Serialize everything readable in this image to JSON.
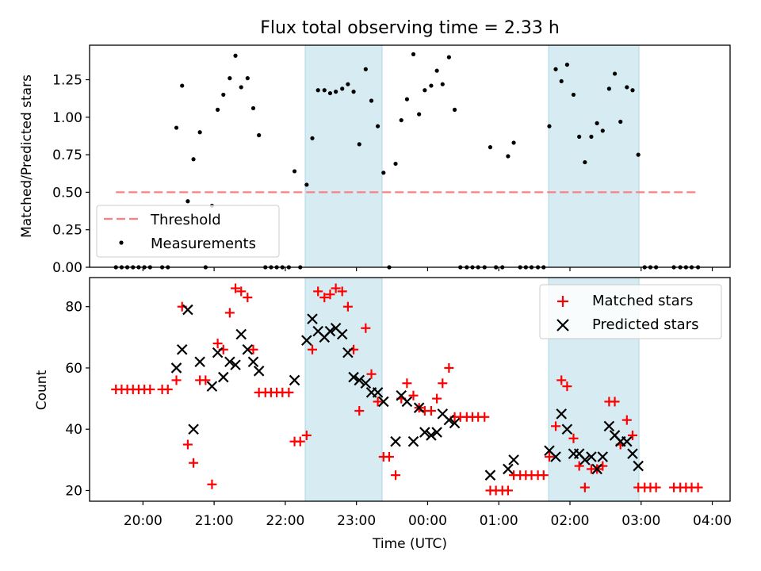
{
  "chart_data": [
    {
      "type": "scatter",
      "title": "Flux total observing time = 2.33 h",
      "xlabel": "",
      "ylabel": "Matched/Predicted stars",
      "xlim": [
        19.25,
        28.25
      ],
      "ylim": [
        0,
        1.48
      ],
      "yticks": [
        0.0,
        0.25,
        0.5,
        0.75,
        1.0,
        1.25
      ],
      "ytick_labels": [
        "0.00",
        "0.25",
        "0.50",
        "0.75",
        "1.00",
        "1.25"
      ],
      "shaded_spans": [
        [
          22.28,
          23.36
        ],
        [
          25.7,
          26.97
        ]
      ],
      "threshold": {
        "name": "Threshold",
        "y": 0.5,
        "x": [
          19.62,
          27.8
        ],
        "color": "#ff7f7f"
      },
      "series": [
        {
          "name": "Measurements",
          "color": "#000000",
          "points": [
            [
              19.62,
              0
            ],
            [
              19.7,
              0
            ],
            [
              19.78,
              0
            ],
            [
              19.86,
              0
            ],
            [
              19.94,
              0
            ],
            [
              20.02,
              0
            ],
            [
              20.1,
              0
            ],
            [
              20.27,
              0
            ],
            [
              20.35,
              0
            ],
            [
              20.47,
              0.93
            ],
            [
              20.55,
              1.21
            ],
            [
              20.63,
              0.44
            ],
            [
              20.71,
              0.72
            ],
            [
              20.8,
              0.9
            ],
            [
              20.88,
              0
            ],
            [
              20.97,
              0.41
            ],
            [
              21.05,
              1.05
            ],
            [
              21.13,
              1.15
            ],
            [
              21.22,
              1.26
            ],
            [
              21.3,
              1.41
            ],
            [
              21.38,
              1.2
            ],
            [
              21.47,
              1.26
            ],
            [
              21.55,
              1.06
            ],
            [
              21.63,
              0.88
            ],
            [
              21.72,
              0
            ],
            [
              21.8,
              0
            ],
            [
              21.88,
              0
            ],
            [
              21.96,
              0
            ],
            [
              22.05,
              0
            ],
            [
              22.13,
              0.64
            ],
            [
              22.21,
              0
            ],
            [
              22.3,
              0.55
            ],
            [
              22.38,
              0.86
            ],
            [
              22.46,
              1.18
            ],
            [
              22.55,
              1.18
            ],
            [
              22.63,
              1.16
            ],
            [
              22.71,
              1.17
            ],
            [
              22.8,
              1.19
            ],
            [
              22.88,
              1.22
            ],
            [
              22.96,
              1.17
            ],
            [
              23.04,
              0.82
            ],
            [
              23.13,
              1.32
            ],
            [
              23.21,
              1.11
            ],
            [
              23.3,
              0.94
            ],
            [
              23.38,
              0.63
            ],
            [
              23.46,
              0
            ],
            [
              23.55,
              0.69
            ],
            [
              23.63,
              0.98
            ],
            [
              23.71,
              1.12
            ],
            [
              23.8,
              1.42
            ],
            [
              23.88,
              1.02
            ],
            [
              23.96,
              1.18
            ],
            [
              24.05,
              1.21
            ],
            [
              24.13,
              1.31
            ],
            [
              24.21,
              1.22
            ],
            [
              24.3,
              1.4
            ],
            [
              24.38,
              1.05
            ],
            [
              24.46,
              0
            ],
            [
              24.55,
              0
            ],
            [
              24.63,
              0
            ],
            [
              24.71,
              0
            ],
            [
              24.8,
              0
            ],
            [
              24.88,
              0.8
            ],
            [
              24.96,
              0
            ],
            [
              25.05,
              0
            ],
            [
              25.13,
              0.74
            ],
            [
              25.21,
              0.83
            ],
            [
              25.3,
              0
            ],
            [
              25.38,
              0
            ],
            [
              25.46,
              0
            ],
            [
              25.55,
              0
            ],
            [
              25.63,
              0
            ],
            [
              25.71,
              0.94
            ],
            [
              25.8,
              1.32
            ],
            [
              25.88,
              1.24
            ],
            [
              25.96,
              1.35
            ],
            [
              26.05,
              1.15
            ],
            [
              26.13,
              0.87
            ],
            [
              26.21,
              0.7
            ],
            [
              26.3,
              0.87
            ],
            [
              26.38,
              0.96
            ],
            [
              26.46,
              0.91
            ],
            [
              26.55,
              1.19
            ],
            [
              26.63,
              1.29
            ],
            [
              26.71,
              0.97
            ],
            [
              26.8,
              1.2
            ],
            [
              26.88,
              1.18
            ],
            [
              26.96,
              0.75
            ],
            [
              27.05,
              0
            ],
            [
              27.13,
              0
            ],
            [
              27.21,
              0
            ],
            [
              27.46,
              0
            ],
            [
              27.55,
              0
            ],
            [
              27.63,
              0
            ],
            [
              27.71,
              0
            ],
            [
              27.8,
              0
            ]
          ]
        }
      ],
      "legend": {
        "placement": "lower-left",
        "entries": [
          "Threshold",
          "Measurements"
        ]
      }
    },
    {
      "type": "scatter",
      "title": "",
      "xlabel": "Time (UTC)",
      "ylabel": "Count",
      "xlim": [
        19.25,
        28.25
      ],
      "ylim": [
        16.5,
        89.5
      ],
      "xticks": [
        20,
        21,
        22,
        23,
        24,
        25,
        26,
        27,
        28
      ],
      "xtick_labels": [
        "20:00",
        "21:00",
        "22:00",
        "23:00",
        "00:00",
        "01:00",
        "02:00",
        "03:00",
        "04:00"
      ],
      "yticks": [
        20,
        40,
        60,
        80
      ],
      "ytick_labels": [
        "20",
        "40",
        "60",
        "80"
      ],
      "shaded_spans": [
        [
          22.28,
          23.36
        ],
        [
          25.7,
          26.97
        ]
      ],
      "series": [
        {
          "name": "Matched stars",
          "color": "#ff0000",
          "marker": "plus",
          "points": [
            [
              19.62,
              53
            ],
            [
              19.7,
              53
            ],
            [
              19.78,
              53
            ],
            [
              19.86,
              53
            ],
            [
              19.94,
              53
            ],
            [
              20.02,
              53
            ],
            [
              20.1,
              53
            ],
            [
              20.27,
              53
            ],
            [
              20.35,
              53
            ],
            [
              20.47,
              56
            ],
            [
              20.55,
              80
            ],
            [
              20.63,
              35
            ],
            [
              20.71,
              29
            ],
            [
              20.8,
              56
            ],
            [
              20.88,
              56
            ],
            [
              20.97,
              22
            ],
            [
              21.05,
              68
            ],
            [
              21.13,
              66
            ],
            [
              21.22,
              78
            ],
            [
              21.3,
              86
            ],
            [
              21.38,
              85
            ],
            [
              21.47,
              83
            ],
            [
              21.55,
              66
            ],
            [
              21.63,
              52
            ],
            [
              21.72,
              52
            ],
            [
              21.8,
              52
            ],
            [
              21.88,
              52
            ],
            [
              21.96,
              52
            ],
            [
              22.05,
              52
            ],
            [
              22.13,
              36
            ],
            [
              22.21,
              36
            ],
            [
              22.3,
              38
            ],
            [
              22.38,
              66
            ],
            [
              22.46,
              85
            ],
            [
              22.55,
              83
            ],
            [
              22.63,
              84
            ],
            [
              22.71,
              86
            ],
            [
              22.8,
              85
            ],
            [
              22.88,
              80
            ],
            [
              22.96,
              66
            ],
            [
              23.04,
              46
            ],
            [
              23.13,
              73
            ],
            [
              23.21,
              58
            ],
            [
              23.3,
              49
            ],
            [
              23.38,
              31
            ],
            [
              23.46,
              31
            ],
            [
              23.55,
              25
            ],
            [
              23.63,
              50
            ],
            [
              23.71,
              55
            ],
            [
              23.8,
              51
            ],
            [
              23.88,
              47
            ],
            [
              23.96,
              46
            ],
            [
              24.05,
              46
            ],
            [
              24.13,
              50
            ],
            [
              24.21,
              55
            ],
            [
              24.3,
              60
            ],
            [
              24.38,
              44
            ],
            [
              24.46,
              44
            ],
            [
              24.55,
              44
            ],
            [
              24.63,
              44
            ],
            [
              24.71,
              44
            ],
            [
              24.8,
              44
            ],
            [
              24.88,
              20
            ],
            [
              24.96,
              20
            ],
            [
              25.05,
              20
            ],
            [
              25.13,
              20
            ],
            [
              25.21,
              25
            ],
            [
              25.3,
              25
            ],
            [
              25.38,
              25
            ],
            [
              25.46,
              25
            ],
            [
              25.55,
              25
            ],
            [
              25.63,
              25
            ],
            [
              25.71,
              31
            ],
            [
              25.8,
              41
            ],
            [
              25.88,
              56
            ],
            [
              25.96,
              54
            ],
            [
              26.05,
              37
            ],
            [
              26.13,
              28
            ],
            [
              26.21,
              21
            ],
            [
              26.3,
              27
            ],
            [
              26.38,
              27
            ],
            [
              26.46,
              28
            ],
            [
              26.55,
              49
            ],
            [
              26.63,
              49
            ],
            [
              26.71,
              35
            ],
            [
              26.8,
              43
            ],
            [
              26.88,
              38
            ],
            [
              26.96,
              21
            ],
            [
              27.05,
              21
            ],
            [
              27.13,
              21
            ],
            [
              27.21,
              21
            ],
            [
              27.46,
              21
            ],
            [
              27.55,
              21
            ],
            [
              27.63,
              21
            ],
            [
              27.71,
              21
            ],
            [
              27.8,
              21
            ]
          ]
        },
        {
          "name": "Predicted stars",
          "color": "#000000",
          "marker": "x",
          "points": [
            [
              20.47,
              60
            ],
            [
              20.55,
              66
            ],
            [
              20.63,
              79
            ],
            [
              20.71,
              40
            ],
            [
              20.8,
              62
            ],
            [
              20.97,
              54
            ],
            [
              21.05,
              65
            ],
            [
              21.13,
              57
            ],
            [
              21.22,
              62
            ],
            [
              21.3,
              61
            ],
            [
              21.38,
              71
            ],
            [
              21.47,
              66
            ],
            [
              21.55,
              62
            ],
            [
              21.63,
              59
            ],
            [
              22.13,
              56
            ],
            [
              22.3,
              69
            ],
            [
              22.38,
              76
            ],
            [
              22.46,
              72
            ],
            [
              22.55,
              70
            ],
            [
              22.63,
              72
            ],
            [
              22.71,
              73
            ],
            [
              22.8,
              71
            ],
            [
              22.88,
              65
            ],
            [
              22.96,
              57
            ],
            [
              23.04,
              56
            ],
            [
              23.13,
              55
            ],
            [
              23.21,
              52
            ],
            [
              23.3,
              52
            ],
            [
              23.38,
              49
            ],
            [
              23.55,
              36
            ],
            [
              23.63,
              51
            ],
            [
              23.71,
              49
            ],
            [
              23.8,
              36
            ],
            [
              23.88,
              47
            ],
            [
              23.96,
              39
            ],
            [
              24.05,
              38
            ],
            [
              24.13,
              39
            ],
            [
              24.21,
              45
            ],
            [
              24.3,
              43
            ],
            [
              24.38,
              42
            ],
            [
              24.88,
              25
            ],
            [
              25.13,
              27
            ],
            [
              25.21,
              30
            ],
            [
              25.71,
              33
            ],
            [
              25.8,
              31
            ],
            [
              25.88,
              45
            ],
            [
              25.96,
              40
            ],
            [
              26.05,
              32
            ],
            [
              26.13,
              32
            ],
            [
              26.21,
              30
            ],
            [
              26.3,
              31
            ],
            [
              26.38,
              27
            ],
            [
              26.46,
              31
            ],
            [
              26.55,
              41
            ],
            [
              26.63,
              38
            ],
            [
              26.71,
              36
            ],
            [
              26.8,
              36
            ],
            [
              26.88,
              32
            ],
            [
              26.96,
              28
            ]
          ]
        }
      ],
      "legend": {
        "placement": "upper-right",
        "entries": [
          "Matched stars",
          "Predicted stars"
        ]
      }
    }
  ]
}
